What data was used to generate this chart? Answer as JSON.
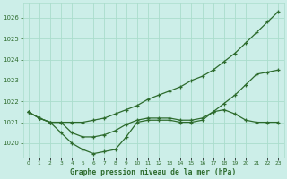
{
  "background_color": "#cceee8",
  "line_color": "#2d6b2d",
  "grid_color": "#aaddcc",
  "xlabel": "Graphe pression niveau de la mer (hPa)",
  "hours": [
    0,
    1,
    2,
    3,
    4,
    5,
    6,
    7,
    8,
    9,
    10,
    11,
    12,
    13,
    14,
    15,
    16,
    17,
    18,
    19,
    20,
    21,
    22,
    23
  ],
  "line_upper": [
    1021.5,
    1021.2,
    1021.0,
    1021.0,
    1021.0,
    1021.0,
    1021.1,
    1021.2,
    1021.4,
    1021.6,
    1021.8,
    1022.1,
    1022.3,
    1022.5,
    1022.7,
    1023.0,
    1023.2,
    1023.5,
    1023.9,
    1024.3,
    1024.8,
    1025.3,
    1025.8,
    1026.3
  ],
  "line_mid": [
    1021.5,
    1021.2,
    1021.0,
    1021.0,
    1020.5,
    1020.3,
    1020.3,
    1020.4,
    1020.6,
    1020.9,
    1021.1,
    1021.2,
    1021.2,
    1021.2,
    1021.1,
    1021.1,
    1021.2,
    1021.5,
    1021.9,
    1022.3,
    1022.8,
    1023.3,
    1023.4,
    1023.5
  ],
  "line_dip": [
    1021.5,
    1021.2,
    1021.0,
    1020.5,
    1020.0,
    1019.7,
    1019.5,
    1019.6,
    1019.7,
    1020.3,
    1021.0,
    1021.1,
    1021.1,
    1021.1,
    1021.0,
    1021.0,
    1021.1,
    1021.5,
    1021.6,
    1021.4,
    1021.1,
    1021.0,
    1021.0,
    1021.0
  ],
  "ylim": [
    1019.3,
    1026.7
  ],
  "yticks": [
    1020,
    1021,
    1022,
    1023,
    1024,
    1025,
    1026
  ],
  "xlim": [
    -0.5,
    23.5
  ]
}
